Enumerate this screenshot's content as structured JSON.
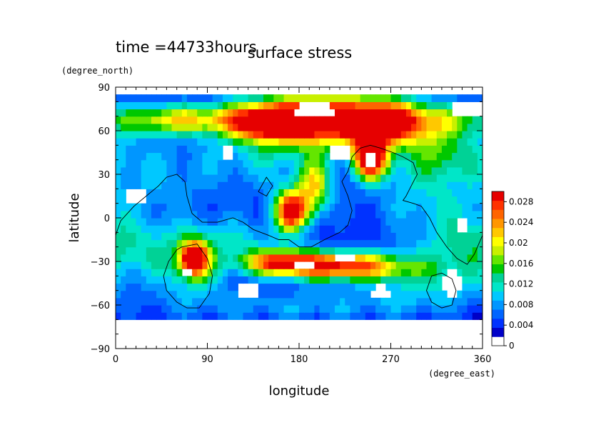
{
  "chart_data": {
    "type": "heatmap",
    "header": "time =44733hours",
    "title": "surface stress",
    "xlabel": "longitude",
    "ylabel": "latitude",
    "x_unit": "(degree_east)",
    "y_unit": "(degree_north)",
    "xlim": [
      0,
      360
    ],
    "ylim": [
      -90,
      90
    ],
    "x_ticks": [
      0,
      90,
      180,
      270,
      360
    ],
    "y_ticks": [
      -90,
      -60,
      -30,
      0,
      30,
      60,
      90
    ],
    "x_tick_labels": [
      "0",
      "90",
      "180",
      "270",
      "360"
    ],
    "y_tick_labels": [
      "−90",
      "−60",
      "−30",
      "0",
      "30",
      "60",
      "90"
    ],
    "colorbar": {
      "min": 0,
      "max": 0.03,
      "tick_values": [
        0,
        0.004,
        0.008,
        0.012,
        0.016,
        0.02,
        0.024,
        0.028
      ],
      "tick_labels": [
        "0",
        "0.004",
        "0.008",
        "0.012",
        "0.016",
        "0.02",
        "0.024",
        "0.028"
      ],
      "colors": [
        "#ffffff",
        "#0000c8",
        "#0032ff",
        "#0064ff",
        "#0096ff",
        "#00c8ff",
        "#00e6c8",
        "#00d296",
        "#00c800",
        "#64e600",
        "#c8f000",
        "#ffff00",
        "#ffc800",
        "#ff9600",
        "#ff6400",
        "#ff3200",
        "#e60000"
      ]
    },
    "fields": [
      {
        "lon": 200,
        "lat": 68,
        "sx": 55,
        "sy": 12,
        "v": 0.032
      },
      {
        "lon": 145,
        "lat": 66,
        "sx": 28,
        "sy": 8,
        "v": 0.018
      },
      {
        "lon": 270,
        "lat": 66,
        "sx": 30,
        "sy": 10,
        "v": 0.02
      },
      {
        "lon": 70,
        "lat": 68,
        "sx": 30,
        "sy": 7,
        "v": 0.014
      },
      {
        "lon": 25,
        "lat": 68,
        "sx": 25,
        "sy": 8,
        "v": 0.008
      },
      {
        "lon": 330,
        "lat": 68,
        "sx": 25,
        "sy": 8,
        "v": 0.008
      },
      {
        "lon": 250,
        "lat": 42,
        "sx": 12,
        "sy": 10,
        "v": 0.032
      },
      {
        "lon": 172,
        "lat": 5,
        "sx": 12,
        "sy": 10,
        "v": 0.028
      },
      {
        "lon": 195,
        "lat": 22,
        "sx": 12,
        "sy": 14,
        "v": 0.016
      },
      {
        "lon": 220,
        "lat": -33,
        "sx": 45,
        "sy": 7,
        "v": 0.026
      },
      {
        "lon": 160,
        "lat": -30,
        "sx": 25,
        "sy": 6,
        "v": 0.018
      },
      {
        "lon": 77,
        "lat": -28,
        "sx": 9,
        "sy": 8,
        "v": 0.028
      },
      {
        "lon": 75,
        "lat": -35,
        "sx": 25,
        "sy": 15,
        "v": 0.008
      },
      {
        "lon": 30,
        "lat": -20,
        "sx": 40,
        "sy": 15,
        "v": 0.006
      },
      {
        "lon": 120,
        "lat": -15,
        "sx": 35,
        "sy": 12,
        "v": 0.006
      },
      {
        "lon": 300,
        "lat": 20,
        "sx": 40,
        "sy": 25,
        "v": 0.006
      },
      {
        "lon": 340,
        "lat": -20,
        "sx": 30,
        "sy": 20,
        "v": 0.006
      },
      {
        "lon": 40,
        "lat": 30,
        "sx": 45,
        "sy": 20,
        "v": 0.005
      },
      {
        "lon": 150,
        "lat": 40,
        "sx": 40,
        "sy": 15,
        "v": 0.006
      },
      {
        "lon": 300,
        "lat": -45,
        "sx": 40,
        "sy": 12,
        "v": 0.006
      },
      {
        "lon": 180,
        "lat": -60,
        "sx": 90,
        "sy": 8,
        "v": 0.005
      },
      {
        "lon": 320,
        "lat": 45,
        "sx": 30,
        "sy": 12,
        "v": 0.008
      }
    ],
    "zero_regions": [
      {
        "lon": 195,
        "lat": 74,
        "rx": 22,
        "ry": 5
      },
      {
        "lon": 250,
        "lat": 40,
        "rx": 7,
        "ry": 6
      },
      {
        "lon": 225,
        "lat": -28,
        "rx": 8,
        "ry": 3
      },
      {
        "lon": 185,
        "lat": -32,
        "rx": 10,
        "ry": 3
      },
      {
        "lon": 70,
        "lat": -38,
        "rx": 5,
        "ry": 2
      },
      {
        "lon": 345,
        "lat": 75,
        "rx": 15,
        "ry": 6
      },
      {
        "lon": 340,
        "lat": -5,
        "rx": 8,
        "ry": 6
      },
      {
        "lon": 20,
        "lat": 15,
        "rx": 10,
        "ry": 6
      },
      {
        "lon": 220,
        "lat": 45,
        "rx": 12,
        "ry": 5
      },
      {
        "lon": 110,
        "lat": 45,
        "rx": 8,
        "ry": 5
      },
      {
        "lon": 130,
        "lat": -50,
        "rx": 10,
        "ry": 6
      },
      {
        "lon": 330,
        "lat": -45,
        "rx": 12,
        "ry": 8
      },
      {
        "lon": 260,
        "lat": -52,
        "rx": 12,
        "ry": 5
      }
    ],
    "coastlines": [
      [
        [
          0,
          -12
        ],
        [
          5,
          -2
        ],
        [
          18,
          8
        ],
        [
          30,
          15
        ],
        [
          42,
          22
        ],
        [
          50,
          28
        ],
        [
          60,
          30
        ],
        [
          68,
          25
        ],
        [
          70,
          15
        ],
        [
          75,
          3
        ],
        [
          85,
          -3
        ],
        [
          100,
          -3
        ],
        [
          115,
          0
        ],
        [
          125,
          -3
        ],
        [
          135,
          -8
        ],
        [
          150,
          -12
        ],
        [
          160,
          -15
        ],
        [
          170,
          -15
        ],
        [
          180,
          -20
        ],
        [
          192,
          -20
        ],
        [
          205,
          -15
        ],
        [
          220,
          -10
        ],
        [
          228,
          -5
        ],
        [
          232,
          5
        ],
        [
          228,
          15
        ],
        [
          222,
          25
        ],
        [
          228,
          32
        ],
        [
          232,
          42
        ],
        [
          240,
          48
        ],
        [
          250,
          50
        ],
        [
          260,
          48
        ],
        [
          272,
          45
        ],
        [
          282,
          42
        ],
        [
          292,
          38
        ],
        [
          296,
          30
        ],
        [
          290,
          22
        ],
        [
          285,
          15
        ],
        [
          282,
          12
        ],
        [
          292,
          10
        ],
        [
          300,
          8
        ],
        [
          308,
          0
        ],
        [
          315,
          -10
        ],
        [
          325,
          -20
        ],
        [
          335,
          -28
        ],
        [
          345,
          -32
        ],
        [
          352,
          -25
        ],
        [
          360,
          -12
        ]
      ],
      [
        [
          65,
          -20
        ],
        [
          80,
          -18
        ],
        [
          90,
          -28
        ],
        [
          95,
          -40
        ],
        [
          92,
          -52
        ],
        [
          82,
          -62
        ],
        [
          70,
          -62
        ],
        [
          60,
          -58
        ],
        [
          50,
          -50
        ],
        [
          47,
          -40
        ],
        [
          52,
          -30
        ],
        [
          60,
          -22
        ],
        [
          65,
          -20
        ]
      ],
      [
        [
          310,
          -40
        ],
        [
          320,
          -38
        ],
        [
          330,
          -42
        ],
        [
          334,
          -50
        ],
        [
          330,
          -60
        ],
        [
          320,
          -62
        ],
        [
          310,
          -58
        ],
        [
          305,
          -50
        ],
        [
          310,
          -40
        ]
      ],
      [
        [
          140,
          18
        ],
        [
          148,
          28
        ],
        [
          154,
          22
        ],
        [
          148,
          15
        ],
        [
          140,
          18
        ]
      ]
    ]
  }
}
